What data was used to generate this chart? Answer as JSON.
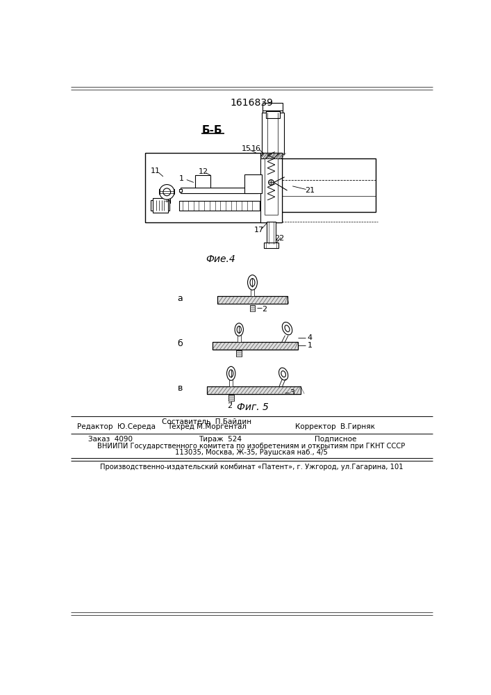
{
  "patent_number": "1616839",
  "section_label": "Б-Б",
  "fig4_label": "Фие.4",
  "fig5_label": "Фиг. 5",
  "subfig_a": "а",
  "subfig_b": "б",
  "subfig_v": "в",
  "label_2a": "2",
  "label_4": "4",
  "label_1b": "1",
  "label_2v": "2",
  "label_3": "3",
  "num_11": "11",
  "num_1": "1",
  "num_12": "12",
  "num_15": "15",
  "num_16": "16",
  "num_21": "21",
  "num_17": "17",
  "num_22": "22",
  "editor_line": "Редактор  Ю.Середа",
  "compiler_line": "Составитель  П.Байдин",
  "techred_line": "Техред М.Моргентал",
  "corrector_line": "Корректор  В.Гирняк",
  "order_line": "Заказ  4090",
  "tirazh_line": "Тираж  524",
  "podpisnoe_line": "Подписное",
  "vniip_line1": "ВНИИПИ Государственного комитета по изобретениям и открытиям при ГКНТ СССР",
  "vniip_line2": "113035, Москва, Ж-35, Раушская наб., 4/5",
  "factory_line": "Производственно-издательский комбинат «Патент», г. Ужгород, ул.Гагарина, 101",
  "bg_color": "#ffffff",
  "line_color": "#000000"
}
